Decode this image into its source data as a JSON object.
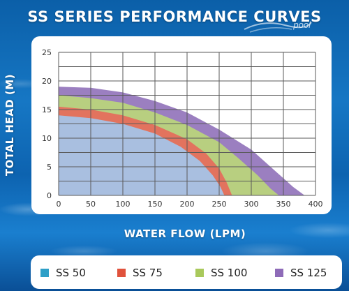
{
  "title": "SS SERIES PERFORMANCE CURVES",
  "logo_text": "pool",
  "chart_data": {
    "type": "area",
    "title": "SS SERIES PERFORMANCE CURVES",
    "xlabel": "WATER FLOW (LPM)",
    "ylabel": "TOTAL HEAD (M)",
    "xlim": [
      0,
      400
    ],
    "ylim": [
      0,
      25
    ],
    "x_ticks": [
      0,
      50,
      100,
      150,
      200,
      250,
      300,
      350,
      400
    ],
    "y_ticks": [
      0,
      5,
      10,
      15,
      20,
      25
    ],
    "grid": true,
    "legend_position": "bottom",
    "series": [
      {
        "name": "SS 125",
        "color": "#9b7fc0",
        "points": [
          [
            0,
            19
          ],
          [
            50,
            18.8
          ],
          [
            100,
            18
          ],
          [
            150,
            16.5
          ],
          [
            200,
            14.5
          ],
          [
            250,
            11.5
          ],
          [
            300,
            8
          ],
          [
            340,
            4
          ],
          [
            365,
            1.5
          ],
          [
            383,
            0
          ]
        ]
      },
      {
        "name": "SS 100",
        "color": "#b8cf80",
        "points": [
          [
            0,
            17.5
          ],
          [
            50,
            17
          ],
          [
            100,
            16.2
          ],
          [
            150,
            14.5
          ],
          [
            200,
            12.3
          ],
          [
            250,
            9.3
          ],
          [
            280,
            6.5
          ],
          [
            310,
            3.5
          ],
          [
            330,
            1.2
          ],
          [
            343,
            0
          ]
        ]
      },
      {
        "name": "SS 75",
        "color": "#e2735e",
        "points": [
          [
            0,
            15.5
          ],
          [
            50,
            15
          ],
          [
            100,
            14
          ],
          [
            150,
            12.3
          ],
          [
            200,
            9.8
          ],
          [
            230,
            7.3
          ],
          [
            250,
            4.7
          ],
          [
            262,
            2.2
          ],
          [
            270,
            0
          ]
        ]
      },
      {
        "name": "SS 50",
        "color": "#a9bfe0",
        "points": [
          [
            0,
            14
          ],
          [
            50,
            13.5
          ],
          [
            100,
            12.5
          ],
          [
            150,
            10.8
          ],
          [
            190,
            8.5
          ],
          [
            220,
            6
          ],
          [
            240,
            3.5
          ],
          [
            252,
            1.5
          ],
          [
            258,
            0
          ]
        ]
      }
    ]
  },
  "legend": [
    {
      "label": "SS 50",
      "color": "#2e9fc7"
    },
    {
      "label": "SS 75",
      "color": "#e0523c"
    },
    {
      "label": "SS 100",
      "color": "#a9c95c"
    },
    {
      "label": "SS 125",
      "color": "#8e6bb8"
    }
  ]
}
